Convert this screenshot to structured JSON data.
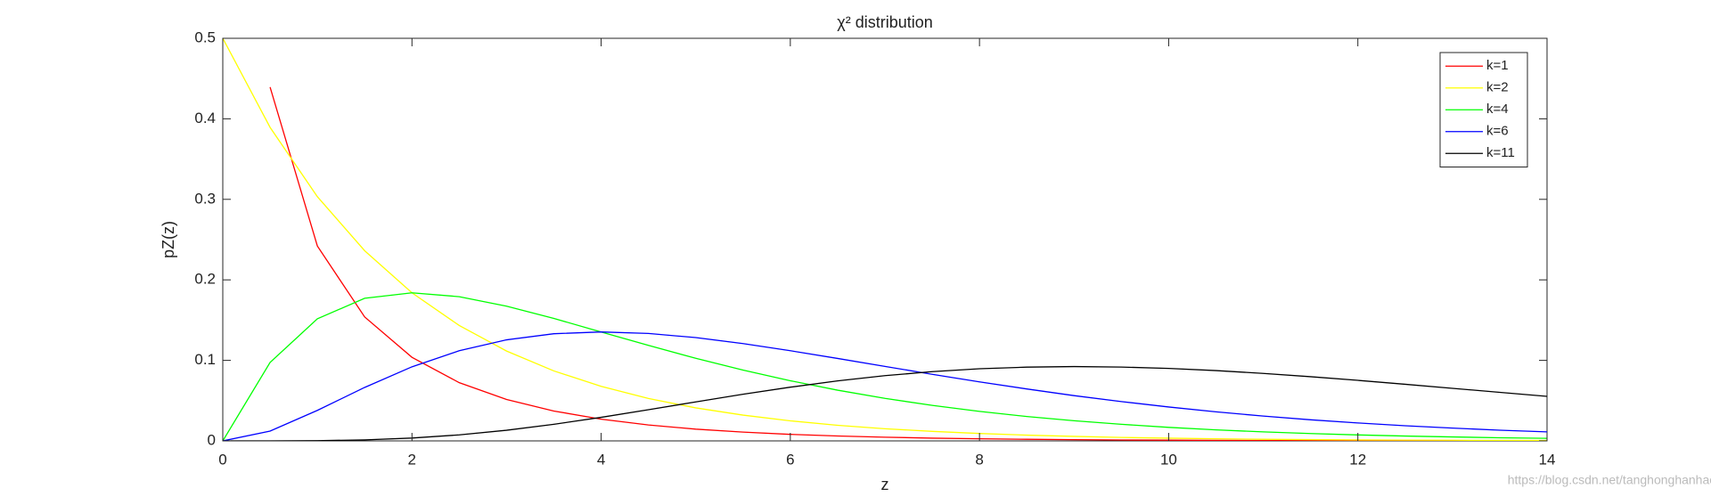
{
  "chart_data": {
    "type": "line",
    "title": "χ² distribution",
    "xlabel": "z",
    "ylabel": "pZ(z)",
    "annotation": "https://blog.csdn.net/tanghonghanhaoli",
    "x": [
      0,
      0.5,
      1,
      1.5,
      2,
      2.5,
      3,
      3.5,
      4,
      4.5,
      5,
      5.5,
      6,
      6.5,
      7,
      7.5,
      8,
      8.5,
      9,
      9.5,
      10,
      10.5,
      11,
      11.5,
      12,
      12.5,
      13,
      13.5,
      14
    ],
    "series": [
      {
        "name": "k=1",
        "color": "#ff0000",
        "values": [
          null,
          0.4394,
          0.242,
          0.1539,
          0.1038,
          0.0723,
          0.0514,
          0.0371,
          0.027,
          0.0198,
          0.0146,
          0.0109,
          0.0081,
          0.0061,
          0.0046,
          0.0034,
          0.0026,
          0.002,
          0.0015,
          0.0011,
          0.0009,
          0.0006,
          0.0005,
          0.0004,
          0.0003,
          0.0002,
          0.0002,
          0.0001,
          0.0001
        ]
      },
      {
        "name": "k=2",
        "color": "#ffff00",
        "values": [
          0.5,
          0.3894,
          0.3033,
          0.2362,
          0.1839,
          0.1433,
          0.1116,
          0.0869,
          0.0677,
          0.0527,
          0.041,
          0.032,
          0.0249,
          0.0194,
          0.0151,
          0.0118,
          0.0092,
          0.0071,
          0.0056,
          0.0043,
          0.0034,
          0.0026,
          0.002,
          0.0016,
          0.0012,
          0.001,
          0.0008,
          0.0006,
          0.0005
        ]
      },
      {
        "name": "k=4",
        "color": "#00ff00",
        "values": [
          0,
          0.0974,
          0.1516,
          0.1771,
          0.1839,
          0.1791,
          0.1673,
          0.1521,
          0.1353,
          0.1186,
          0.1026,
          0.0879,
          0.0747,
          0.063,
          0.0528,
          0.0441,
          0.0366,
          0.0303,
          0.025,
          0.0206,
          0.0168,
          0.0137,
          0.0112,
          0.0091,
          0.0074,
          0.006,
          0.0049,
          0.0039,
          0.0032
        ]
      },
      {
        "name": "k=6",
        "color": "#0000ff",
        "values": [
          0,
          0.0122,
          0.0379,
          0.0664,
          0.092,
          0.112,
          0.1255,
          0.1331,
          0.1353,
          0.1334,
          0.1283,
          0.1209,
          0.112,
          0.1024,
          0.0925,
          0.0827,
          0.0733,
          0.0645,
          0.0562,
          0.0488,
          0.0421,
          0.0361,
          0.0308,
          0.0262,
          0.0223,
          0.0188,
          0.0159,
          0.0133,
          0.0112
        ]
      },
      {
        "name": "k=11",
        "color": "#000000",
        "values": [
          0,
          1.45e-05,
          0.000256,
          0.00124,
          0.00351,
          0.00747,
          0.01321,
          0.0206,
          0.02925,
          0.0387,
          0.0484,
          0.0579,
          0.0667,
          0.0745,
          0.081,
          0.086,
          0.0896,
          0.0916,
          0.0923,
          0.0917,
          0.09,
          0.0873,
          0.0838,
          0.0797,
          0.0752,
          0.0703,
          0.0653,
          0.0603,
          0.0553
        ]
      }
    ],
    "xlim": [
      0,
      14
    ],
    "xticks": [
      0,
      2,
      4,
      6,
      8,
      10,
      12,
      14
    ],
    "ylim": [
      0,
      0.5
    ],
    "yticks": [
      0,
      0.1,
      0.2,
      0.3,
      0.4,
      0.5
    ],
    "grid": false,
    "legend": "top-right"
  }
}
